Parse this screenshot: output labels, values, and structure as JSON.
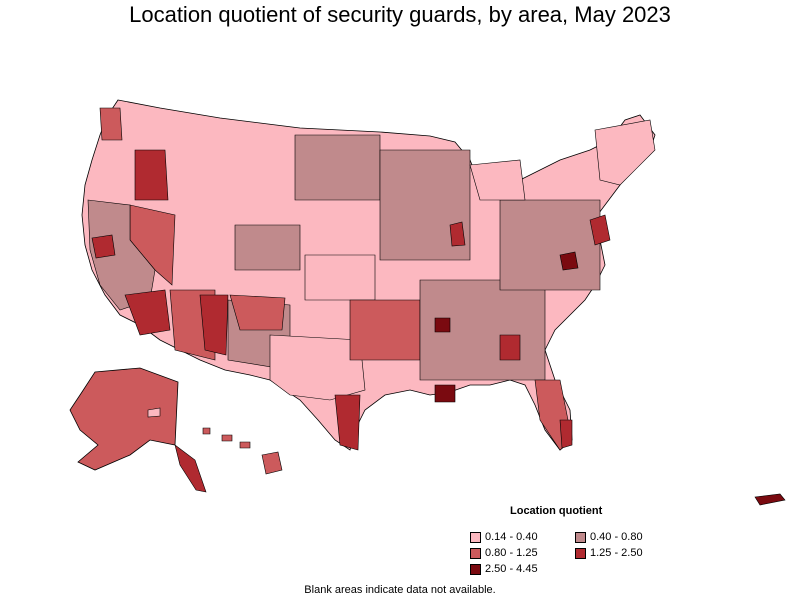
{
  "title": "Location quotient of security guards, by area, May 2023",
  "legend": {
    "title": "Location quotient",
    "items": [
      {
        "label": "0.14 - 0.40",
        "color": "#fcb8c0"
      },
      {
        "label": "0.40 - 0.80",
        "color": "#c08a8c"
      },
      {
        "label": "0.80 - 1.25",
        "color": "#cc5a5c"
      },
      {
        "label": "1.25 - 2.50",
        "color": "#b02a30"
      },
      {
        "label": "2.50 - 4.45",
        "color": "#7a0a10"
      }
    ]
  },
  "footnote": "Blank areas indicate data not available.",
  "colors": {
    "border": "#000000",
    "background": "#ffffff"
  }
}
